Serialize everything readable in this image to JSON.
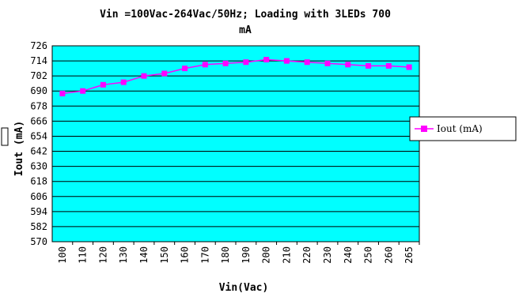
{
  "chart_data": {
    "type": "line",
    "title_line1": "Vin =100Vac-264Vac/50Hz; Loading with 3LEDs 700",
    "title_line2": "mA",
    "xlabel": "Vin(Vac)",
    "ylabel": "Iout (mA)",
    "x": [
      "100",
      "110",
      "120",
      "130",
      "140",
      "150",
      "160",
      "170",
      "180",
      "190",
      "200",
      "210",
      "220",
      "230",
      "240",
      "250",
      "260",
      "265"
    ],
    "series": [
      {
        "name": "Iout (mA)",
        "values": [
          688,
          690,
          695,
          697,
          702,
          704,
          708,
          711,
          712,
          713,
          715,
          714,
          713,
          712,
          711,
          710,
          710,
          709
        ]
      }
    ],
    "yticks": [
      726,
      714,
      702,
      690,
      678,
      666,
      654,
      642,
      630,
      618,
      606,
      594,
      582,
      570
    ],
    "ylim": [
      570,
      726
    ],
    "grid": true,
    "legend_position": "right",
    "colors": {
      "plot_background": "#00ffff",
      "gridline": "#000000",
      "series_line": "#ff00ff",
      "series_marker": "#ff00ff"
    }
  }
}
